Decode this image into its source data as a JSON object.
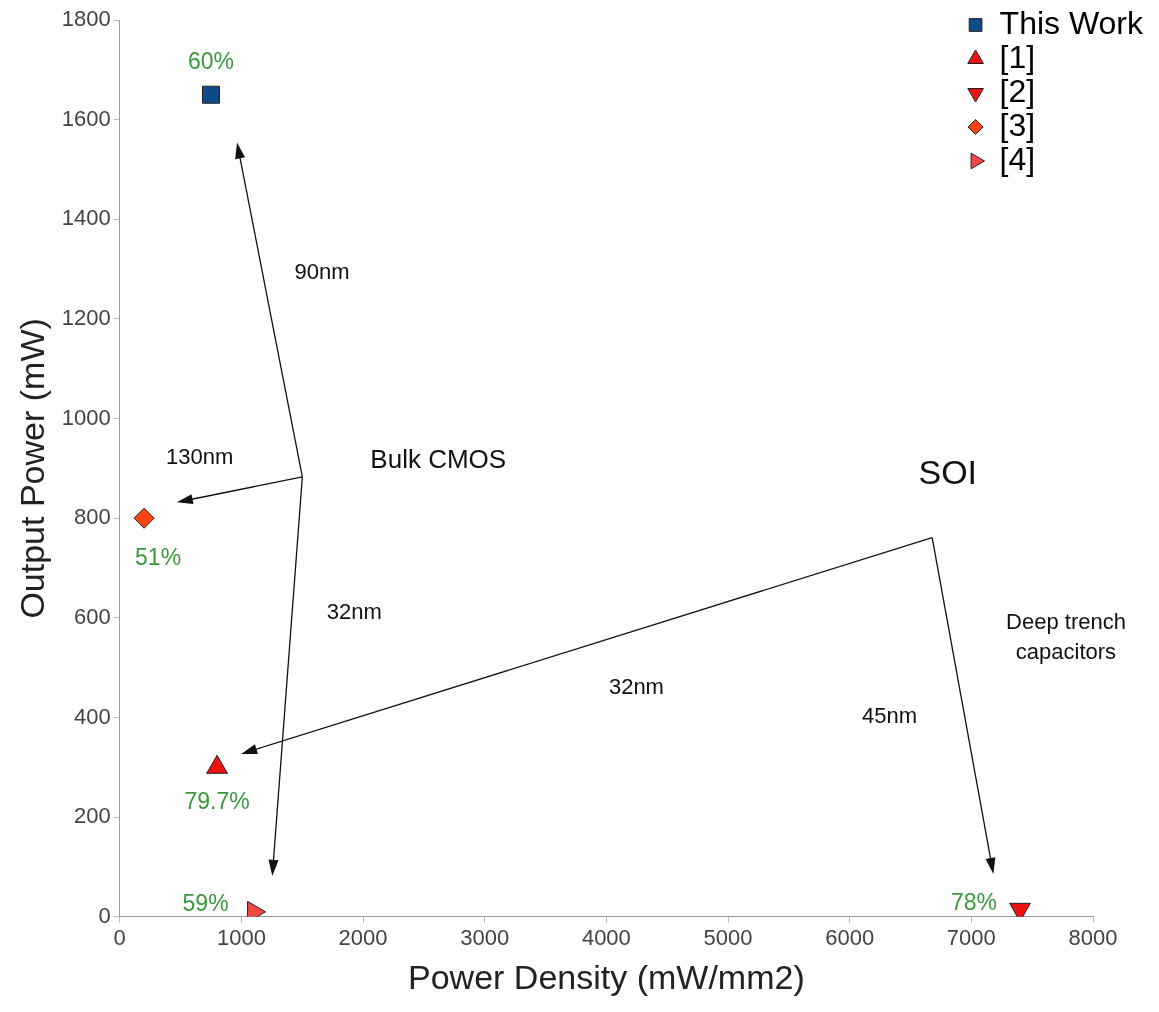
{
  "chart_data": {
    "type": "scatter",
    "xlabel": "Power Density (mW/mm2)",
    "ylabel": "Output Power (mW)",
    "xlim": [
      0,
      8000
    ],
    "xticks": [
      0,
      1000,
      2000,
      3000,
      4000,
      5000,
      6000,
      7000,
      8000
    ],
    "ylim": [
      0,
      1800
    ],
    "yticks": [
      0,
      200,
      400,
      600,
      800,
      1000,
      1200,
      1400,
      1600,
      1800
    ],
    "grid": false,
    "legend": "top right",
    "series": [
      {
        "name": "This Work",
        "color": "#0d4a86",
        "marker": "square",
        "x": [
          750
        ],
        "values": [
          1650
        ]
      },
      {
        "name": "[1]",
        "color": "#ee1111",
        "marker": "triangle",
        "x": [
          800
        ],
        "values": [
          300
        ]
      },
      {
        "name": "[2]",
        "color": "#ee1111",
        "marker": "triangle-down",
        "x": [
          7400
        ],
        "values": [
          15
        ]
      },
      {
        "name": "[3]",
        "color": "#ff4411",
        "marker": "diamond",
        "x": [
          200
        ],
        "values": [
          800
        ]
      },
      {
        "name": "[4]",
        "color": "#f04848",
        "marker": "triangle-right",
        "x": [
          1100
        ],
        "values": [
          10
        ]
      }
    ],
    "annotations": [
      {
        "text": "60%",
        "x": 750,
        "y": 1650
      },
      {
        "text": "79.7%",
        "x": 800,
        "y": 300
      },
      {
        "text": "78%",
        "x": 7400,
        "y": 15
      },
      {
        "text": "51%",
        "x": 200,
        "y": 800
      },
      {
        "text": "59%",
        "x": 1100,
        "y": 10
      },
      "90nm",
      "130nm",
      "Bulk CMOS",
      "32nm",
      "SOI",
      "32nm",
      "45nm",
      "Deep trench capacitors"
    ]
  }
}
